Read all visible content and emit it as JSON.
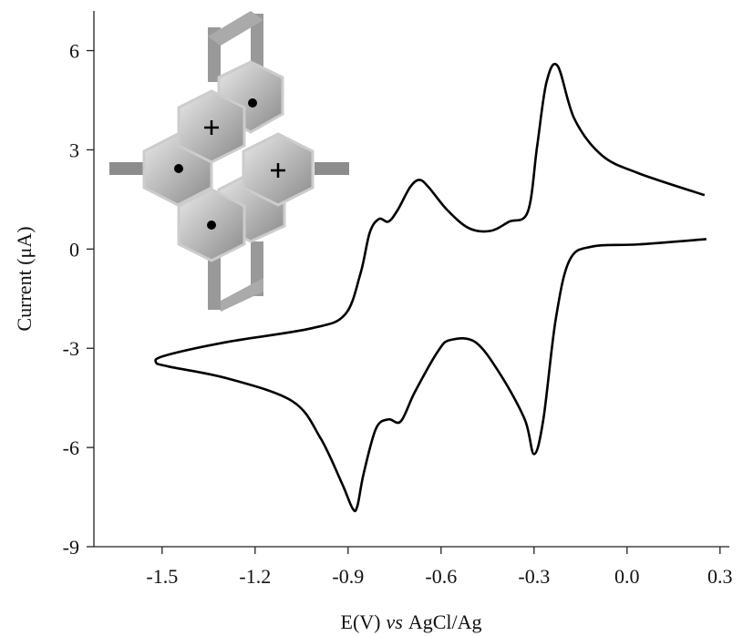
{
  "chart_data": {
    "type": "line",
    "x_label": [
      "E(V)",
      "vs",
      "AgCl/Ag"
    ],
    "y_label": "Current (μA)",
    "x": [
      0.25,
      0.035,
      -0.082,
      -0.17,
      -0.224,
      -0.26,
      -0.29,
      -0.32,
      -0.38,
      -0.44,
      -0.51,
      -0.58,
      -0.64,
      -0.67,
      -0.7,
      -0.74,
      -0.77,
      -0.8,
      -0.83,
      -0.86,
      -0.91,
      -1.02,
      -1.29,
      -1.49,
      -1.52,
      -1.48,
      -1.29,
      -1.08,
      -0.99,
      -0.92,
      -0.885,
      -0.87,
      -0.85,
      -0.81,
      -0.77,
      -0.73,
      -0.685,
      -0.61,
      -0.57,
      -0.49,
      -0.41,
      -0.33,
      -0.3,
      -0.27,
      -0.23,
      -0.185,
      -0.11,
      0.035,
      0.256
    ],
    "series": [
      {
        "color": "#000000",
        "values": [
          1.63,
          2.3,
          2.84,
          3.94,
          5.54,
          5.04,
          3.11,
          1.13,
          0.83,
          0.55,
          0.63,
          1.18,
          1.87,
          2.09,
          1.87,
          1.18,
          0.83,
          0.91,
          0.5,
          -0.74,
          -1.98,
          -2.4,
          -2.81,
          -3.22,
          -3.42,
          -3.55,
          -3.91,
          -4.6,
          -5.7,
          -7.08,
          -7.85,
          -7.77,
          -6.8,
          -5.43,
          -5.15,
          -5.21,
          -4.33,
          -3.09,
          -2.75,
          -2.81,
          -3.77,
          -5.15,
          -6.2,
          -5.15,
          -2.12,
          -0.33,
          0.08,
          0.14,
          0.3
        ]
      }
    ],
    "xlim": [
      -1.72,
      0.33
    ],
    "ylim": [
      -9,
      7.2
    ],
    "xticks": [
      -1.5,
      -1.2,
      -0.9,
      -0.6,
      -0.3,
      {
        "value": 0,
        "label": "0.0"
      },
      0.3
    ],
    "yticks": [
      -9,
      -6,
      -3,
      0,
      3,
      6
    ]
  }
}
